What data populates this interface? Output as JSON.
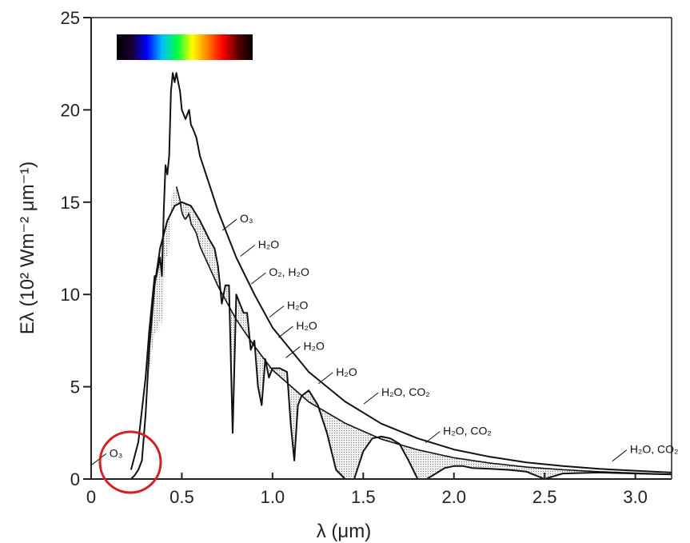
{
  "chart_data": {
    "type": "line",
    "title": "",
    "xlabel": "λ (μm)",
    "ylabel": "Eλ (10² Wm⁻² μm⁻¹)",
    "xlim": [
      0,
      3.2
    ],
    "ylim": [
      0,
      25
    ],
    "xticks": [
      "0",
      "0.5",
      "1.0",
      "1.5",
      "2.0",
      "2.5",
      "3.0"
    ],
    "xtick_values": [
      0,
      0.5,
      1.0,
      1.5,
      2.0,
      2.5,
      3.0
    ],
    "yticks": [
      "0",
      "5",
      "10",
      "15",
      "20",
      "25"
    ],
    "ytick_values": [
      0,
      5,
      10,
      15,
      20,
      25
    ],
    "grid": false,
    "series": [
      {
        "role": "top-of-atmosphere",
        "x": [
          0.22,
          0.26,
          0.3,
          0.32,
          0.34,
          0.35,
          0.36,
          0.37,
          0.38,
          0.39,
          0.4,
          0.41,
          0.42,
          0.43,
          0.44,
          0.45,
          0.46,
          0.47,
          0.48,
          0.49,
          0.5,
          0.52,
          0.54,
          0.55,
          0.56,
          0.58,
          0.6,
          0.65,
          0.7,
          0.8,
          0.9,
          1.0,
          1.2,
          1.4,
          1.6,
          1.8,
          2.0,
          2.2,
          2.4,
          2.6,
          2.8,
          3.0,
          3.2
        ],
        "y": [
          0.5,
          2.0,
          5.5,
          8.0,
          10.0,
          11.0,
          11.0,
          11.5,
          12.0,
          11.0,
          14.5,
          17.0,
          16.5,
          17.5,
          21.0,
          22.0,
          21.5,
          22.0,
          21.5,
          21.0,
          20.0,
          19.5,
          20.0,
          19.2,
          19.0,
          18.5,
          17.5,
          16.0,
          14.5,
          12.0,
          10.0,
          8.2,
          5.8,
          4.2,
          3.0,
          2.2,
          1.6,
          1.2,
          0.9,
          0.7,
          0.55,
          0.45,
          0.35
        ]
      },
      {
        "role": "sea-level",
        "x": [
          0.22,
          0.24,
          0.26,
          0.28,
          0.3,
          0.32,
          0.35,
          0.38,
          0.42,
          0.46,
          0.5,
          0.55,
          0.6,
          0.65,
          0.68,
          0.7,
          0.72,
          0.74,
          0.76,
          0.78,
          0.8,
          0.82,
          0.84,
          0.86,
          0.88,
          0.9,
          0.92,
          0.94,
          0.96,
          0.98,
          1.0,
          1.04,
          1.08,
          1.1,
          1.12,
          1.14,
          1.16,
          1.2,
          1.25,
          1.3,
          1.35,
          1.4,
          1.45,
          1.5,
          1.55,
          1.6,
          1.65,
          1.7,
          1.75,
          1.8,
          1.85,
          1.9,
          1.95,
          2.0,
          2.05,
          2.1,
          2.2,
          2.3,
          2.4,
          2.5,
          2.6,
          2.8,
          3.0,
          3.2
        ],
        "y": [
          0.0,
          0.2,
          0.5,
          1.0,
          3.5,
          7.0,
          10.5,
          12.5,
          14.0,
          14.8,
          15.0,
          14.8,
          14.0,
          13.0,
          12.5,
          11.5,
          9.5,
          10.5,
          10.5,
          2.5,
          10.0,
          9.5,
          9.0,
          9.0,
          7.0,
          7.5,
          5.0,
          4.0,
          6.5,
          5.5,
          6.0,
          6.0,
          5.8,
          3.0,
          1.0,
          4.0,
          4.5,
          4.8,
          4.0,
          2.5,
          0.5,
          0.0,
          0.0,
          1.5,
          2.2,
          2.3,
          2.2,
          1.9,
          1.0,
          0.0,
          0.0,
          0.3,
          0.6,
          0.7,
          0.7,
          0.6,
          0.55,
          0.5,
          0.4,
          0.0,
          0.3,
          0.35,
          0.3,
          0.25
        ]
      }
    ],
    "annotations": [
      {
        "label": "O₃",
        "x": 0.82,
        "y": 13.9
      },
      {
        "label": "H₂O",
        "x": 0.92,
        "y": 12.5
      },
      {
        "label": "O₂, H₂O",
        "x": 0.98,
        "y": 11.0
      },
      {
        "label": "H₂O",
        "x": 1.08,
        "y": 9.2
      },
      {
        "label": "H₂O",
        "x": 1.13,
        "y": 8.1
      },
      {
        "label": "H₂O",
        "x": 1.17,
        "y": 7.0
      },
      {
        "label": "H₂O",
        "x": 1.35,
        "y": 5.6
      },
      {
        "label": "H₂O, CO₂",
        "x": 1.6,
        "y": 4.5
      },
      {
        "label": "H₂O, CO₂",
        "x": 1.94,
        "y": 2.4
      },
      {
        "label": "H₂O, CO₂",
        "x": 2.97,
        "y": 1.4
      },
      {
        "label": "O₃",
        "x": 0.1,
        "y": 1.2
      }
    ],
    "spectrum_colors": [
      "#000000",
      "#1a0030",
      "#0000ff",
      "#00c0ff",
      "#00ff40",
      "#ffff00",
      "#ff8000",
      "#ff0000",
      "#600000",
      "#000000"
    ],
    "highlight_color": "#d42020"
  }
}
